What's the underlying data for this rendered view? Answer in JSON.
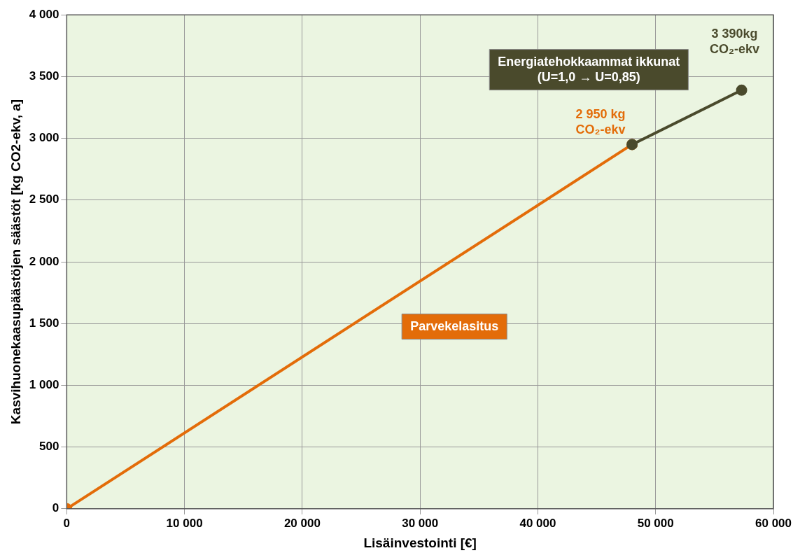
{
  "chart_data": {
    "type": "line",
    "xlabel": "Lisäinvestointi [€]",
    "ylabel": "Kasvihuonekaasupäästöjen säästöt [kg CO2-ekv, a]",
    "series": [
      {
        "name": "Parvekelasitus",
        "color": "#e36c09",
        "x": [
          0,
          48000
        ],
        "values": [
          0,
          2950
        ]
      },
      {
        "name": "Energiatehokkaammat ikkunat\n(U=1,0 → U=0,85)",
        "color": "#4a4a2c",
        "x": [
          48000,
          57300
        ],
        "values": [
          2950,
          3390
        ]
      }
    ],
    "annotations": [
      {
        "text": "2 950 kg\nCO₂-ekv",
        "x": 48000,
        "y": 2950
      },
      {
        "text": "3 390kg\nCO₂-ekv",
        "x": 57300,
        "y": 3390
      }
    ],
    "xlim": [
      0,
      60000
    ],
    "xticks": [
      0,
      {
        "value": 10000,
        "label": "10 000"
      },
      {
        "value": 20000,
        "label": "20 000"
      },
      {
        "value": 30000,
        "label": "30 000"
      },
      {
        "value": 40000,
        "label": "40 000"
      },
      {
        "value": 50000,
        "label": "50 000"
      },
      {
        "value": 60000,
        "label": "60 000"
      }
    ],
    "ylim": [
      0,
      4000
    ],
    "yticks": [
      0,
      500,
      {
        "value": 1000,
        "label": "1 000"
      },
      {
        "value": 1500,
        "label": "1 500"
      },
      {
        "value": 2000,
        "label": "2 000"
      },
      {
        "value": 2500,
        "label": "2 500"
      },
      {
        "value": 3000,
        "label": "3 000"
      },
      {
        "value": 3500,
        "label": "3 500"
      },
      {
        "value": 4000,
        "label": "4 000"
      }
    ],
    "grid": true,
    "marker": "circle",
    "line_style": "solid",
    "legend": false
  }
}
